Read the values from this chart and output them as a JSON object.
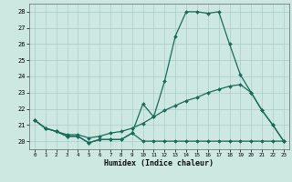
{
  "title": "",
  "xlabel": "Humidex (Indice chaleur)",
  "bg_color": "#cce8e0",
  "grid_color": "#aacccc",
  "line_color": "#1a6b5a",
  "xlim": [
    -0.5,
    23.5
  ],
  "ylim": [
    19.5,
    28.5
  ],
  "yticks": [
    20,
    21,
    22,
    23,
    24,
    25,
    26,
    27,
    28
  ],
  "xticks": [
    0,
    1,
    2,
    3,
    4,
    5,
    6,
    7,
    8,
    9,
    10,
    11,
    12,
    13,
    14,
    15,
    16,
    17,
    18,
    19,
    20,
    21,
    22,
    23
  ],
  "series1_x": [
    0,
    1,
    2,
    3,
    4,
    5,
    6,
    7,
    8,
    9,
    10,
    11,
    12,
    13,
    14,
    15,
    16,
    17,
    18,
    19,
    20,
    21,
    22,
    23
  ],
  "series1_y": [
    21.3,
    20.8,
    20.6,
    20.3,
    20.3,
    19.9,
    20.1,
    20.1,
    20.1,
    20.5,
    22.3,
    21.5,
    23.7,
    26.5,
    28.0,
    28.0,
    27.9,
    28.0,
    26.0,
    24.1,
    23.0,
    21.9,
    21.0,
    20.0
  ],
  "series2_x": [
    0,
    1,
    2,
    3,
    4,
    5,
    6,
    7,
    8,
    9,
    10,
    11,
    12,
    13,
    14,
    15,
    16,
    17,
    18,
    19,
    20,
    21,
    22,
    23
  ],
  "series2_y": [
    21.3,
    20.8,
    20.6,
    20.3,
    20.3,
    19.9,
    20.1,
    20.1,
    20.1,
    20.5,
    20.0,
    20.0,
    20.0,
    20.0,
    20.0,
    20.0,
    20.0,
    20.0,
    20.0,
    20.0,
    20.0,
    20.0,
    20.0,
    20.0
  ],
  "series3_x": [
    0,
    1,
    2,
    3,
    4,
    5,
    6,
    7,
    8,
    9,
    10,
    11,
    12,
    13,
    14,
    15,
    16,
    17,
    18,
    19,
    20,
    21,
    22,
    23
  ],
  "series3_y": [
    21.3,
    20.8,
    20.6,
    20.4,
    20.4,
    20.2,
    20.3,
    20.5,
    20.6,
    20.8,
    21.1,
    21.5,
    21.9,
    22.2,
    22.5,
    22.7,
    23.0,
    23.2,
    23.4,
    23.5,
    23.0,
    21.9,
    21.0,
    20.0
  ]
}
